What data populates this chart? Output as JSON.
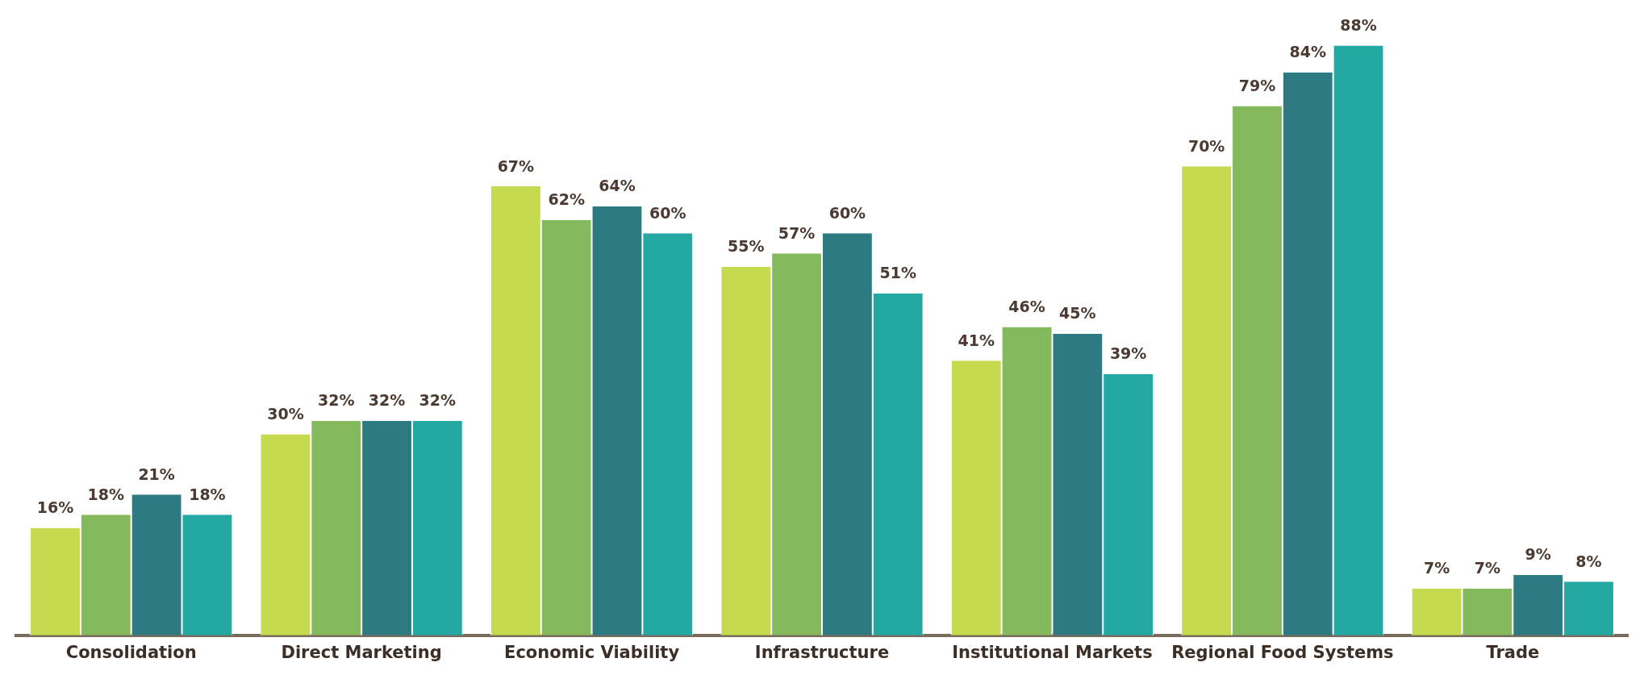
{
  "chart_data": {
    "type": "bar",
    "categories": [
      "Consolidation",
      "Direct Marketing",
      "Economic Viability",
      "Infrastructure",
      "Institutional Markets",
      "Regional Food Systems",
      "Trade"
    ],
    "series": [
      {
        "color": "#c5da4e",
        "values": [
          16,
          30,
          67,
          55,
          41,
          70,
          7
        ],
        "value_labels": [
          "16%",
          "30%",
          "67%",
          "55%",
          "41%",
          "70%",
          "7%"
        ]
      },
      {
        "color": "#84b95e",
        "values": [
          18,
          32,
          62,
          57,
          46,
          79,
          7
        ],
        "value_labels": [
          "18%",
          "32%",
          "62%",
          "57%",
          "46%",
          "79%",
          "7%"
        ]
      },
      {
        "color": "#2e7a82",
        "values": [
          21,
          32,
          64,
          60,
          45,
          84,
          9
        ],
        "value_labels": [
          "21%",
          "32%",
          "64%",
          "60%",
          "45%",
          "84%",
          "9%"
        ]
      },
      {
        "color": "#23a8a2",
        "values": [
          18,
          32,
          60,
          51,
          39,
          88,
          8
        ],
        "value_labels": [
          "18%",
          "32%",
          "60%",
          "51%",
          "39%",
          "88%",
          "8%"
        ]
      }
    ],
    "grid": false,
    "legend": false,
    "tick_labels": "x"
  }
}
